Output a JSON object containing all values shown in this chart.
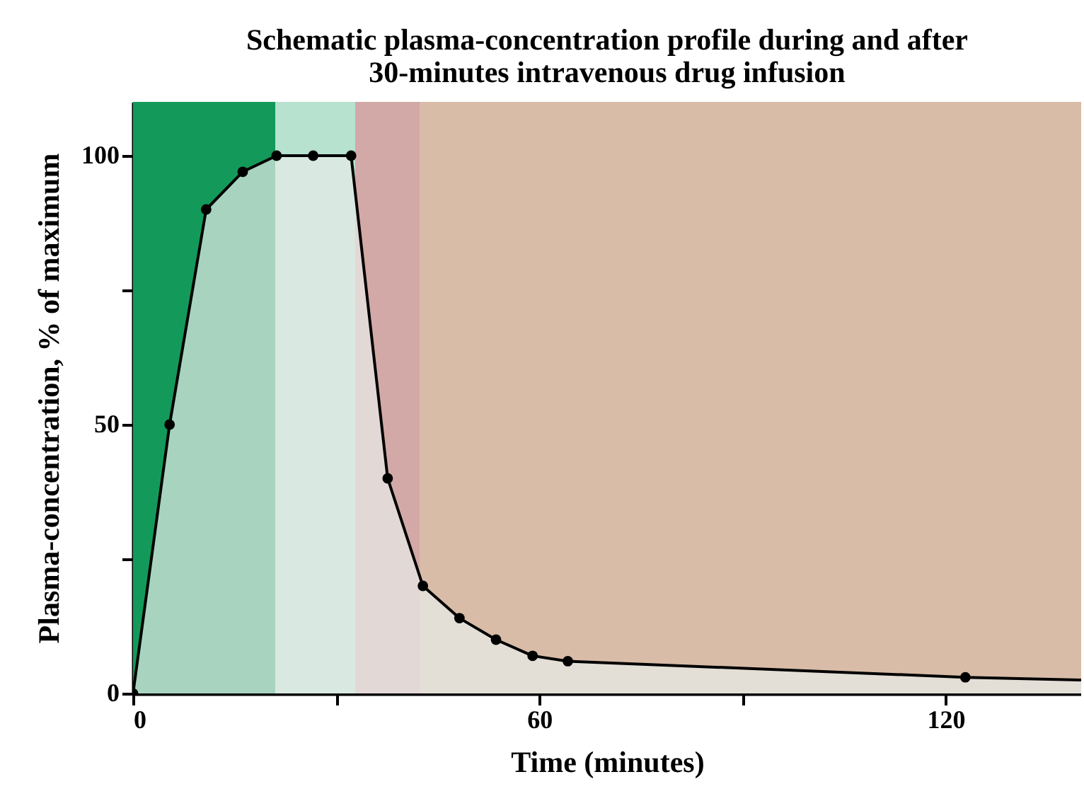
{
  "chart_data": {
    "type": "area",
    "title": "Schematic plasma-concentration profile during and after\n30-minutes intravenous drug infusion",
    "xlabel": "Time (minutes)",
    "ylabel": "Plasma-concentration, % of maximum",
    "xlim": [
      0,
      140
    ],
    "ylim": [
      0,
      110
    ],
    "xticks": [
      0,
      {
        "value": 30,
        "label": null
      },
      60,
      {
        "value": 90,
        "label": null
      },
      120
    ],
    "yticks": [
      0,
      {
        "value": 25,
        "label": null
      },
      50,
      {
        "value": 75,
        "label": null
      },
      100
    ],
    "bands": [
      {
        "axis": "x",
        "from": 0,
        "to": 21,
        "color": "#139a5a"
      },
      {
        "axis": "x",
        "from": 21,
        "to": 32.8,
        "color": "#b6e2cf"
      },
      {
        "axis": "x",
        "from": 32.8,
        "to": 42.4,
        "color": "#d2a9a6"
      },
      {
        "axis": "x",
        "from": 42.4,
        "to": 140,
        "color": "#d8bca8"
      }
    ],
    "series": [
      {
        "color": "#000000",
        "marker": "none",
        "x": [
          0,
          5.4,
          10.8,
          16.2,
          21.2,
          26.6,
          32.2,
          37.6,
          42.8,
          48.2,
          53.6,
          59,
          64.2,
          122.9,
          140
        ],
        "values": [
          0,
          50,
          90,
          97,
          100,
          100,
          100,
          40,
          20,
          14,
          10,
          7,
          6,
          3,
          2.5
        ]
      },
      {
        "type": "scatter",
        "color": "#000000",
        "marker": "circle",
        "x": [
          0,
          5.4,
          10.8,
          16.2,
          21.2,
          26.6,
          32.2,
          37.6,
          42.8,
          48.2,
          53.6,
          59,
          64.2,
          122.9
        ],
        "values": [
          0,
          50,
          90,
          97,
          100,
          100,
          100,
          40,
          20,
          14,
          10,
          7,
          6,
          3
        ]
      }
    ]
  }
}
